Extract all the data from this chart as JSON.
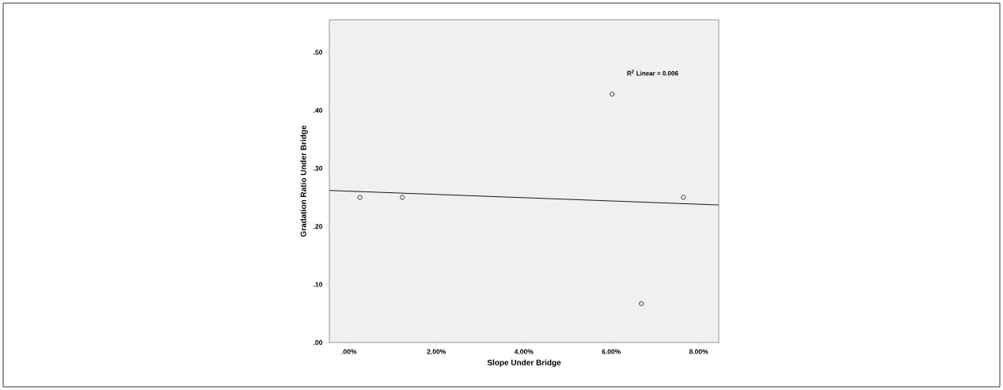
{
  "chart_data": {
    "type": "scatter",
    "xlabel": "Slope Under Bridge",
    "ylabel": "Gradation Ratio Under Bridge",
    "x": [
      0.25,
      1.22,
      6.02,
      6.69,
      7.65
    ],
    "series": [
      {
        "color": "#000000",
        "marker": "circle",
        "values": [
          0.25,
          0.25,
          0.428,
          0.067,
          0.25
        ]
      },
      {
        "type": "line",
        "color": "#000000",
        "marker": "none",
        "x": [
          -0.45,
          8.46
        ],
        "values": [
          0.262,
          0.237
        ]
      }
    ],
    "xlim": [
      -0.45,
      8.46
    ],
    "ylim": [
      0,
      0.556
    ],
    "xticks": [
      {
        "value": 0,
        "label": ".00%"
      },
      {
        "value": 2,
        "label": "2.00%"
      },
      {
        "value": 4,
        "label": "4.00%"
      },
      {
        "value": 6,
        "label": "6.00%"
      },
      {
        "value": 8,
        "label": "8.00%"
      }
    ],
    "yticks": [
      {
        "value": 0,
        "label": ".00"
      },
      {
        "value": 0.1,
        "label": ".10"
      },
      {
        "value": 0.2,
        "label": ".20"
      },
      {
        "value": 0.3,
        "label": ".30"
      },
      {
        "value": 0.4,
        "label": ".40"
      },
      {
        "value": 0.5,
        "label": ".50"
      }
    ],
    "annotations": [
      "R$^{2}$ Linear = 0.006"
    ],
    "grid": false
  }
}
